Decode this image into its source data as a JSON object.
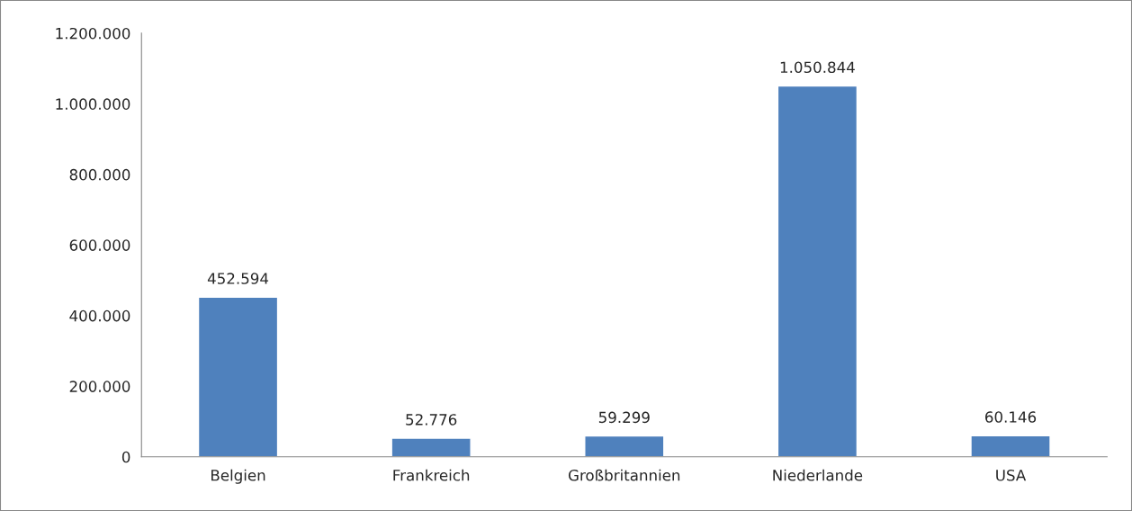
{
  "chart_data": {
    "type": "bar",
    "categories": [
      "Belgien",
      "Frankreich",
      "Großbritannien",
      "Niederlande",
      "USA"
    ],
    "values": [
      452594,
      52776,
      59299,
      1050844,
      60146
    ],
    "value_labels": [
      "452.594",
      "52.776",
      "59.299",
      "1.050.844",
      "60.146"
    ],
    "color": "#4f81bd",
    "ylim": [
      0,
      1200000
    ],
    "yticks": [
      0,
      {
        "value": 200000,
        "label": "200.000"
      },
      {
        "value": 400000,
        "label": "400.000"
      },
      {
        "value": 600000,
        "label": "600.000"
      },
      {
        "value": 800000,
        "label": "800.000"
      },
      {
        "value": 1000000,
        "label": "1.000.000"
      },
      {
        "value": 1200000,
        "label": "1.200.000"
      }
    ],
    "grid": false,
    "legend": false
  }
}
